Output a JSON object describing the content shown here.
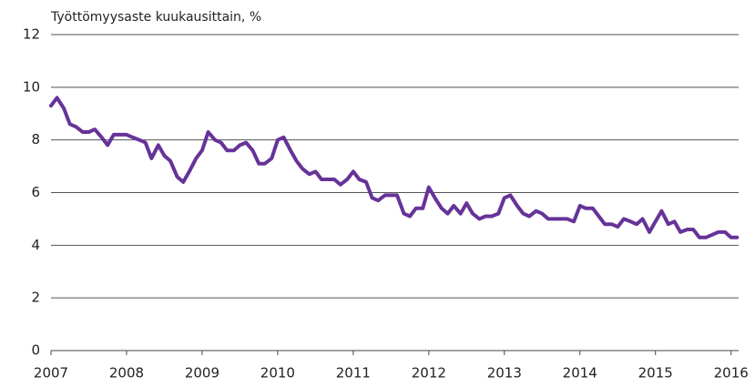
{
  "chart_data": {
    "type": "line",
    "title": "Työttömyysaste kuukausittain, %",
    "x": [
      2007.0,
      2007.08,
      2007.17,
      2007.25,
      2007.33,
      2007.42,
      2007.5,
      2007.58,
      2007.67,
      2007.75,
      2007.83,
      2007.92,
      2008.0,
      2008.08,
      2008.17,
      2008.25,
      2008.33,
      2008.42,
      2008.5,
      2008.58,
      2008.67,
      2008.75,
      2008.83,
      2008.92,
      2009.0,
      2009.08,
      2009.17,
      2009.25,
      2009.33,
      2009.42,
      2009.5,
      2009.58,
      2009.67,
      2009.75,
      2009.83,
      2009.92,
      2010.0,
      2010.08,
      2010.17,
      2010.25,
      2010.33,
      2010.42,
      2010.5,
      2010.58,
      2010.67,
      2010.75,
      2010.83,
      2010.92,
      2011.0,
      2011.08,
      2011.17,
      2011.25,
      2011.33,
      2011.42,
      2011.5,
      2011.58,
      2011.67,
      2011.75,
      2011.83,
      2011.92,
      2012.0,
      2012.08,
      2012.17,
      2012.25,
      2012.33,
      2012.42,
      2012.5,
      2012.58,
      2012.67,
      2012.75,
      2012.83,
      2012.92,
      2013.0,
      2013.08,
      2013.17,
      2013.25,
      2013.33,
      2013.42,
      2013.5,
      2013.58,
      2013.67,
      2013.75,
      2013.83,
      2013.92,
      2014.0,
      2014.08,
      2014.17,
      2014.25,
      2014.33,
      2014.42,
      2014.5,
      2014.58,
      2014.67,
      2014.75,
      2014.83,
      2014.92,
      2015.0,
      2015.08,
      2015.17,
      2015.25,
      2015.33,
      2015.42,
      2015.5,
      2015.58,
      2015.67,
      2015.75,
      2015.83,
      2015.92,
      2016.0,
      2016.08
    ],
    "series": [
      {
        "color": "#663399",
        "values": [
          9.3,
          9.6,
          9.2,
          8.6,
          8.5,
          8.3,
          8.3,
          8.4,
          8.1,
          7.8,
          8.2,
          8.2,
          8.2,
          8.1,
          8.0,
          7.9,
          7.3,
          7.8,
          7.4,
          7.2,
          6.6,
          6.4,
          6.8,
          7.3,
          7.6,
          8.3,
          8.0,
          7.9,
          7.6,
          7.6,
          7.8,
          7.9,
          7.6,
          7.1,
          7.1,
          7.3,
          8.0,
          8.1,
          7.6,
          7.2,
          6.9,
          6.7,
          6.8,
          6.5,
          6.5,
          6.5,
          6.3,
          6.5,
          6.8,
          6.5,
          6.4,
          5.8,
          5.7,
          5.9,
          5.9,
          5.9,
          5.2,
          5.1,
          5.4,
          5.4,
          6.2,
          5.8,
          5.4,
          5.2,
          5.5,
          5.2,
          5.6,
          5.2,
          5.0,
          5.1,
          5.1,
          5.2,
          5.8,
          5.9,
          5.5,
          5.2,
          5.1,
          5.3,
          5.2,
          5.0,
          5.0,
          5.0,
          5.0,
          4.9,
          5.5,
          5.4,
          5.4,
          5.1,
          4.8,
          4.8,
          4.7,
          5.0,
          4.9,
          4.8,
          5.0,
          4.5,
          4.9,
          5.3,
          4.8,
          4.9,
          4.5,
          4.6,
          4.6,
          4.3,
          4.3,
          4.4,
          4.5,
          4.5,
          4.3,
          4.3
        ]
      }
    ],
    "xlim": [
      2007,
      2016.1
    ],
    "xticks": [
      2007,
      2008,
      2009,
      2010,
      2011,
      2012,
      2013,
      2014,
      2015,
      2016
    ],
    "ylim": [
      0,
      12
    ],
    "yticks": [
      0,
      2,
      4,
      6,
      8,
      10,
      12
    ],
    "grid": true
  }
}
